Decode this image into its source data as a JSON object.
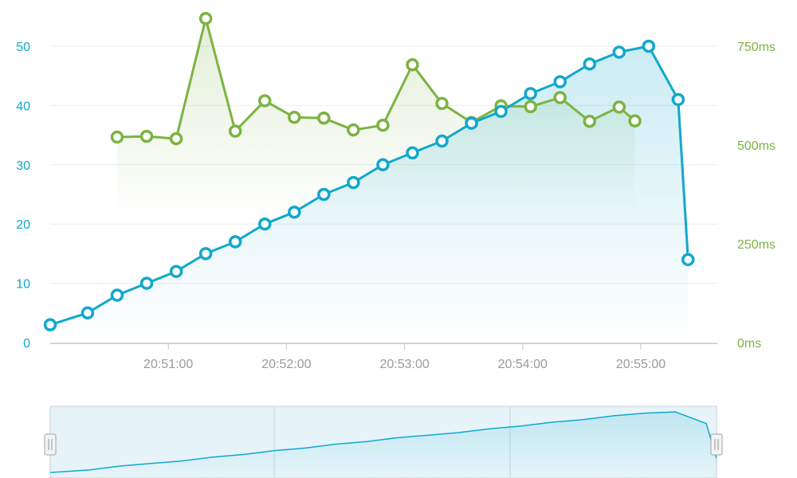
{
  "colors": {
    "blue": "#11a8cd",
    "green": "#7cb342",
    "grid": "#e9eef0",
    "axis": "#bfc6c9"
  },
  "chart_data": {
    "type": "line",
    "x_ticks": [
      "20:51:00",
      "20:52:00",
      "20:53:00",
      "20:54:00",
      "20:55:00"
    ],
    "y_left": {
      "ticks": [
        "0",
        "10",
        "20",
        "30",
        "40",
        "50"
      ],
      "range": [
        0,
        50
      ]
    },
    "y_right": {
      "ticks": [
        "0ms",
        "250ms",
        "500ms",
        "750ms"
      ],
      "range": [
        0,
        750
      ]
    },
    "series": [
      {
        "axis": "left",
        "times": [
          "20:50:00",
          "20:50:19",
          "20:50:34",
          "20:50:49",
          "20:51:04",
          "20:51:19",
          "20:51:34",
          "20:51:49",
          "20:52:04",
          "20:52:19",
          "20:52:34",
          "20:52:49",
          "20:53:04",
          "20:53:19",
          "20:53:34",
          "20:53:49",
          "20:54:04",
          "20:54:19",
          "20:54:34",
          "20:54:49",
          "20:55:04",
          "20:55:19",
          "20:55:24"
        ],
        "values": [
          3,
          5,
          8,
          10,
          12,
          15,
          17,
          20,
          22,
          25,
          27,
          30,
          32,
          34,
          37,
          39,
          42,
          44,
          47,
          49,
          50,
          41,
          14
        ]
      },
      {
        "axis": "right",
        "times": [
          "20:50:34",
          "20:50:49",
          "20:51:04",
          "20:51:19",
          "20:51:34",
          "20:51:49",
          "20:52:04",
          "20:52:19",
          "20:52:34",
          "20:52:49",
          "20:53:04",
          "20:53:19",
          "20:53:34",
          "20:53:49",
          "20:54:04",
          "20:54:19",
          "20:54:34",
          "20:54:49",
          "20:54:57"
        ],
        "values": [
          520,
          522,
          516,
          820,
          535,
          612,
          570,
          568,
          538,
          550,
          703,
          605,
          557,
          599,
          597,
          620,
          560,
          596,
          561
        ]
      }
    ],
    "grid": true,
    "navigator": true
  }
}
